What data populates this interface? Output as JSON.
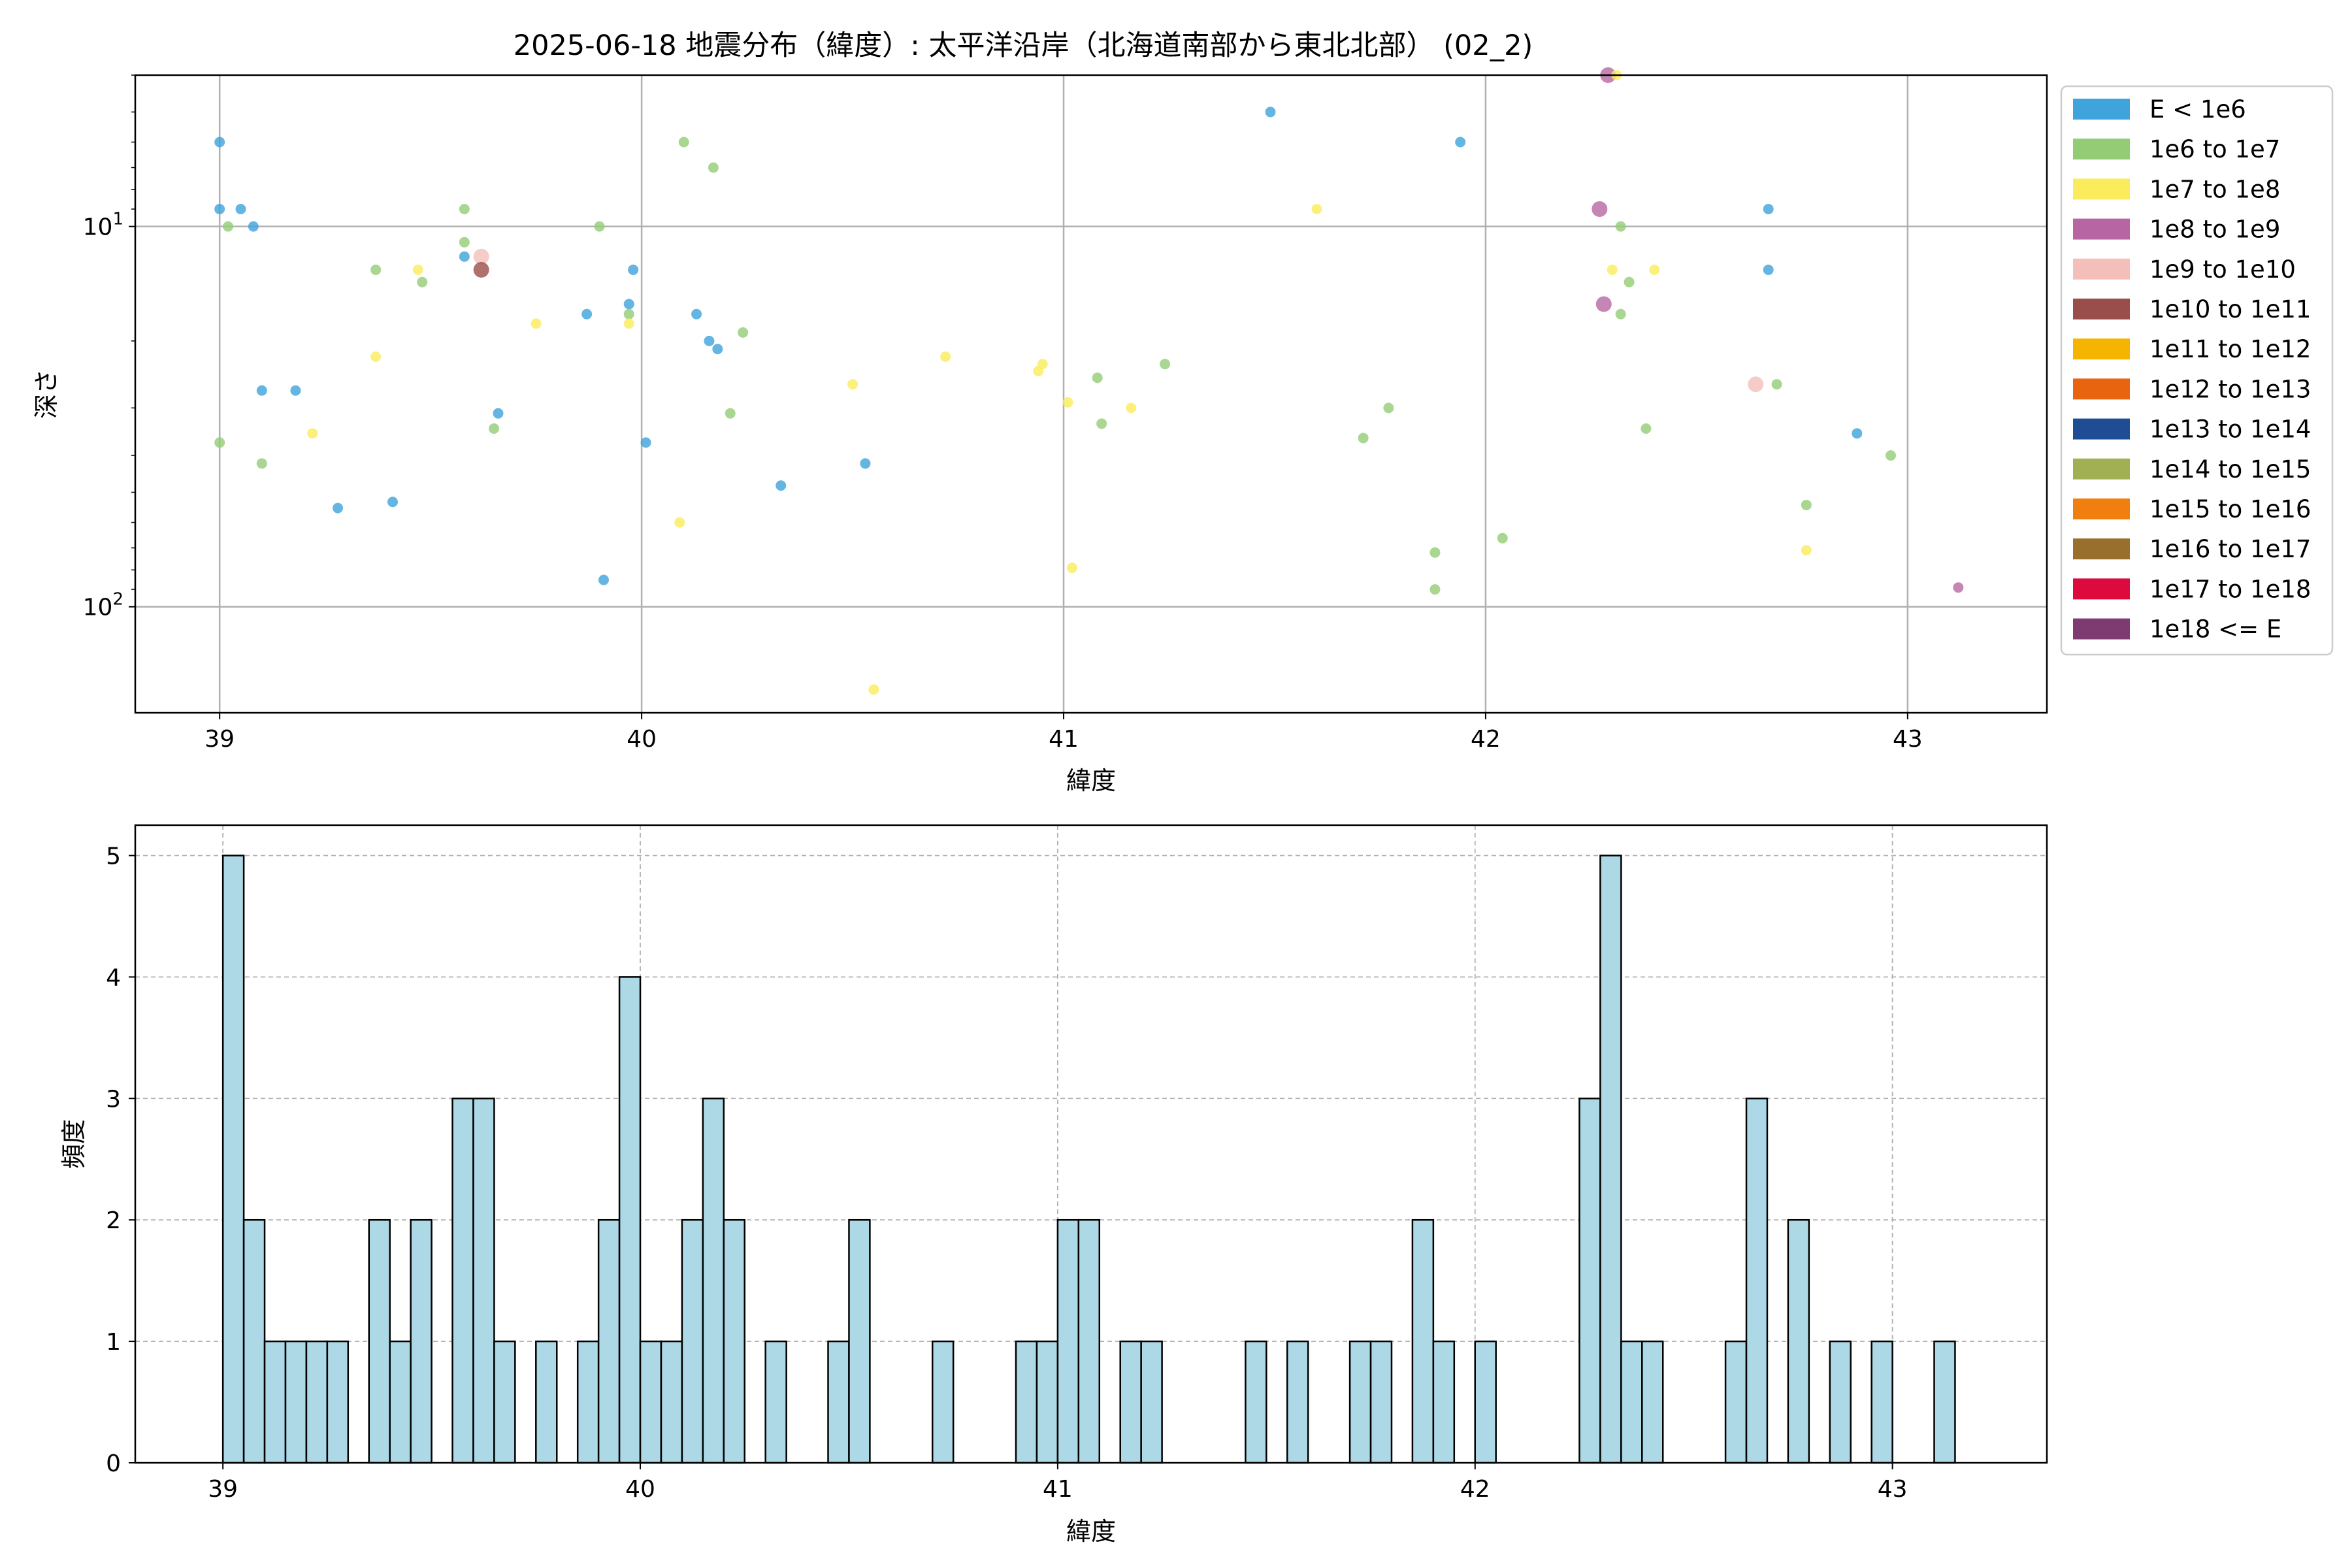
{
  "chart_data": [
    {
      "type": "scatter",
      "title": "2025-06-18 地震分布（緯度）: 太平洋沿岸（北海道南部から東北北部） (02_2)",
      "xlabel": "緯度",
      "ylabel": "深さ",
      "xlim": [
        38.8,
        43.33
      ],
      "ylim": [
        4,
        190
      ],
      "y_scale": "log",
      "y_inverted": true,
      "grid": true,
      "xticks": [
        "39",
        "40",
        "41",
        "42",
        "43"
      ],
      "yticks": [
        {
          "value": 10,
          "label": "10",
          "sup": "1"
        },
        {
          "value": 100,
          "label": "10",
          "sup": "2"
        }
      ],
      "legend_position": "outside right",
      "legend": [
        {
          "label": "E < 1e6",
          "color": "#3fa3dc"
        },
        {
          "label": "1e6 to 1e7",
          "color": "#93cc74"
        },
        {
          "label": "1e7 to 1e8",
          "color": "#fbec5d"
        },
        {
          "label": "1e8 to 1e9",
          "color": "#b766a3"
        },
        {
          "label": "1e9 to 1e10",
          "color": "#f4bfbb"
        },
        {
          "label": "1e10 to 1e11",
          "color": "#9a4e4b"
        },
        {
          "label": "1e11 to 1e12",
          "color": "#f5b400"
        },
        {
          "label": "1e12 to 1e13",
          "color": "#e8640f"
        },
        {
          "label": "1e13 to 1e14",
          "color": "#1e4c95"
        },
        {
          "label": "1e14 to 1e15",
          "color": "#a0b052"
        },
        {
          "label": "1e15 to 1e16",
          "color": "#f07f10"
        },
        {
          "label": "1e16 to 1e17",
          "color": "#986f2c"
        },
        {
          "label": "1e17 to 1e18",
          "color": "#dd0a3d"
        },
        {
          "label": "1e18 <= E",
          "color": "#7e3b72"
        }
      ],
      "points": [
        {
          "x": 39.0,
          "y": 6.0,
          "c": 0
        },
        {
          "x": 39.0,
          "y": 9.0,
          "c": 0
        },
        {
          "x": 39.05,
          "y": 9.0,
          "c": 0
        },
        {
          "x": 39.08,
          "y": 10.0,
          "c": 0
        },
        {
          "x": 39.02,
          "y": 10.0,
          "c": 1
        },
        {
          "x": 39.1,
          "y": 27.0,
          "c": 0
        },
        {
          "x": 39.18,
          "y": 27.0,
          "c": 0
        },
        {
          "x": 39.0,
          "y": 37.0,
          "c": 1
        },
        {
          "x": 39.1,
          "y": 42.0,
          "c": 1
        },
        {
          "x": 39.22,
          "y": 35.0,
          "c": 2
        },
        {
          "x": 39.28,
          "y": 55.0,
          "c": 0
        },
        {
          "x": 39.41,
          "y": 53.0,
          "c": 0
        },
        {
          "x": 39.37,
          "y": 22.0,
          "c": 2
        },
        {
          "x": 39.37,
          "y": 13.0,
          "c": 1
        },
        {
          "x": 39.47,
          "y": 13.0,
          "c": 2
        },
        {
          "x": 39.48,
          "y": 14.0,
          "c": 1
        },
        {
          "x": 39.58,
          "y": 9.0,
          "c": 1
        },
        {
          "x": 39.58,
          "y": 11.0,
          "c": 1
        },
        {
          "x": 39.58,
          "y": 12.0,
          "c": 0
        },
        {
          "x": 39.62,
          "y": 12.0,
          "c": 4,
          "big": true
        },
        {
          "x": 39.62,
          "y": 13.0,
          "c": 5,
          "big": true
        },
        {
          "x": 39.66,
          "y": 31.0,
          "c": 0
        },
        {
          "x": 39.65,
          "y": 34.0,
          "c": 1
        },
        {
          "x": 39.75,
          "y": 18.0,
          "c": 2
        },
        {
          "x": 39.87,
          "y": 17.0,
          "c": 0
        },
        {
          "x": 39.91,
          "y": 85.0,
          "c": 0
        },
        {
          "x": 39.9,
          "y": 10.0,
          "c": 1
        },
        {
          "x": 39.98,
          "y": 13.0,
          "c": 0
        },
        {
          "x": 39.97,
          "y": 16.0,
          "c": 0
        },
        {
          "x": 39.97,
          "y": 17.0,
          "c": 1
        },
        {
          "x": 39.97,
          "y": 18.0,
          "c": 2
        },
        {
          "x": 40.01,
          "y": 37.0,
          "c": 0
        },
        {
          "x": 40.1,
          "y": 6.0,
          "c": 1
        },
        {
          "x": 40.17,
          "y": 7.0,
          "c": 1
        },
        {
          "x": 40.13,
          "y": 17.0,
          "c": 0
        },
        {
          "x": 40.16,
          "y": 20.0,
          "c": 0
        },
        {
          "x": 40.18,
          "y": 21.0,
          "c": 0
        },
        {
          "x": 40.24,
          "y": 19.0,
          "c": 1
        },
        {
          "x": 40.21,
          "y": 31.0,
          "c": 1
        },
        {
          "x": 40.09,
          "y": 60.0,
          "c": 2
        },
        {
          "x": 40.33,
          "y": 48.0,
          "c": 0
        },
        {
          "x": 40.5,
          "y": 26.0,
          "c": 2
        },
        {
          "x": 40.53,
          "y": 42.0,
          "c": 0
        },
        {
          "x": 40.55,
          "y": 165.0,
          "c": 2
        },
        {
          "x": 40.72,
          "y": 22.0,
          "c": 2
        },
        {
          "x": 40.94,
          "y": 24.0,
          "c": 2
        },
        {
          "x": 40.95,
          "y": 23.0,
          "c": 2
        },
        {
          "x": 41.01,
          "y": 29.0,
          "c": 2
        },
        {
          "x": 41.02,
          "y": 79.0,
          "c": 2
        },
        {
          "x": 41.08,
          "y": 25.0,
          "c": 1
        },
        {
          "x": 41.09,
          "y": 33.0,
          "c": 1
        },
        {
          "x": 41.16,
          "y": 30.0,
          "c": 2
        },
        {
          "x": 41.24,
          "y": 23.0,
          "c": 1
        },
        {
          "x": 41.49,
          "y": 5.0,
          "c": 0
        },
        {
          "x": 41.6,
          "y": 9.0,
          "c": 2
        },
        {
          "x": 41.71,
          "y": 36.0,
          "c": 1
        },
        {
          "x": 41.77,
          "y": 30.0,
          "c": 1
        },
        {
          "x": 41.88,
          "y": 72.0,
          "c": 1
        },
        {
          "x": 41.88,
          "y": 90.0,
          "c": 1
        },
        {
          "x": 41.94,
          "y": 6.0,
          "c": 0
        },
        {
          "x": 42.04,
          "y": 66.0,
          "c": 1
        },
        {
          "x": 42.27,
          "y": 9.0,
          "c": 3,
          "big": true
        },
        {
          "x": 42.29,
          "y": 4.0,
          "c": 3,
          "big": true
        },
        {
          "x": 42.31,
          "y": 4.0,
          "c": 2
        },
        {
          "x": 42.3,
          "y": 13.0,
          "c": 2
        },
        {
          "x": 42.28,
          "y": 16.0,
          "c": 3,
          "big": true
        },
        {
          "x": 42.32,
          "y": 17.0,
          "c": 1
        },
        {
          "x": 42.32,
          "y": 10.0,
          "c": 1
        },
        {
          "x": 42.34,
          "y": 14.0,
          "c": 1
        },
        {
          "x": 42.38,
          "y": 34.0,
          "c": 1
        },
        {
          "x": 42.4,
          "y": 13.0,
          "c": 2
        },
        {
          "x": 42.64,
          "y": 26.0,
          "c": 4,
          "big": true
        },
        {
          "x": 42.67,
          "y": 9.0,
          "c": 0
        },
        {
          "x": 42.67,
          "y": 13.0,
          "c": 0
        },
        {
          "x": 42.69,
          "y": 26.0,
          "c": 1
        },
        {
          "x": 42.76,
          "y": 54.0,
          "c": 1
        },
        {
          "x": 42.76,
          "y": 71.0,
          "c": 2
        },
        {
          "x": 42.88,
          "y": 35.0,
          "c": 0
        },
        {
          "x": 42.96,
          "y": 40.0,
          "c": 1
        },
        {
          "x": 43.12,
          "y": 89.0,
          "c": 3
        }
      ]
    },
    {
      "type": "bar",
      "title": "",
      "xlabel": "緯度",
      "ylabel": "頻度",
      "xlim": [
        38.79,
        43.37
      ],
      "ylim": [
        0,
        5.25
      ],
      "grid": true,
      "bar_color": "#add8e6",
      "bin_width": 0.05,
      "xticks": [
        "39",
        "40",
        "41",
        "42",
        "43"
      ],
      "yticks": [
        "0",
        "1",
        "2",
        "3",
        "4",
        "5"
      ],
      "bins": [
        {
          "x": 39.0,
          "v": 5
        },
        {
          "x": 39.05,
          "v": 2
        },
        {
          "x": 39.1,
          "v": 1
        },
        {
          "x": 39.15,
          "v": 1
        },
        {
          "x": 39.2,
          "v": 1
        },
        {
          "x": 39.25,
          "v": 1
        },
        {
          "x": 39.35,
          "v": 2
        },
        {
          "x": 39.4,
          "v": 1
        },
        {
          "x": 39.45,
          "v": 2
        },
        {
          "x": 39.55,
          "v": 3
        },
        {
          "x": 39.6,
          "v": 3
        },
        {
          "x": 39.65,
          "v": 1
        },
        {
          "x": 39.75,
          "v": 1
        },
        {
          "x": 39.85,
          "v": 1
        },
        {
          "x": 39.9,
          "v": 2
        },
        {
          "x": 39.95,
          "v": 4
        },
        {
          "x": 40.0,
          "v": 1
        },
        {
          "x": 40.05,
          "v": 1
        },
        {
          "x": 40.1,
          "v": 2
        },
        {
          "x": 40.15,
          "v": 3
        },
        {
          "x": 40.2,
          "v": 2
        },
        {
          "x": 40.3,
          "v": 1
        },
        {
          "x": 40.45,
          "v": 1
        },
        {
          "x": 40.5,
          "v": 2
        },
        {
          "x": 40.7,
          "v": 1
        },
        {
          "x": 40.9,
          "v": 1
        },
        {
          "x": 40.95,
          "v": 1
        },
        {
          "x": 41.0,
          "v": 2
        },
        {
          "x": 41.05,
          "v": 2
        },
        {
          "x": 41.15,
          "v": 1
        },
        {
          "x": 41.2,
          "v": 1
        },
        {
          "x": 41.45,
          "v": 1
        },
        {
          "x": 41.55,
          "v": 1
        },
        {
          "x": 41.7,
          "v": 1
        },
        {
          "x": 41.75,
          "v": 1
        },
        {
          "x": 41.85,
          "v": 2
        },
        {
          "x": 41.9,
          "v": 1
        },
        {
          "x": 42.0,
          "v": 1
        },
        {
          "x": 42.25,
          "v": 3
        },
        {
          "x": 42.3,
          "v": 5
        },
        {
          "x": 42.35,
          "v": 1
        },
        {
          "x": 42.4,
          "v": 1
        },
        {
          "x": 42.6,
          "v": 1
        },
        {
          "x": 42.65,
          "v": 3
        },
        {
          "x": 42.75,
          "v": 2
        },
        {
          "x": 42.85,
          "v": 1
        },
        {
          "x": 42.95,
          "v": 1
        },
        {
          "x": 43.1,
          "v": 1
        }
      ]
    }
  ]
}
